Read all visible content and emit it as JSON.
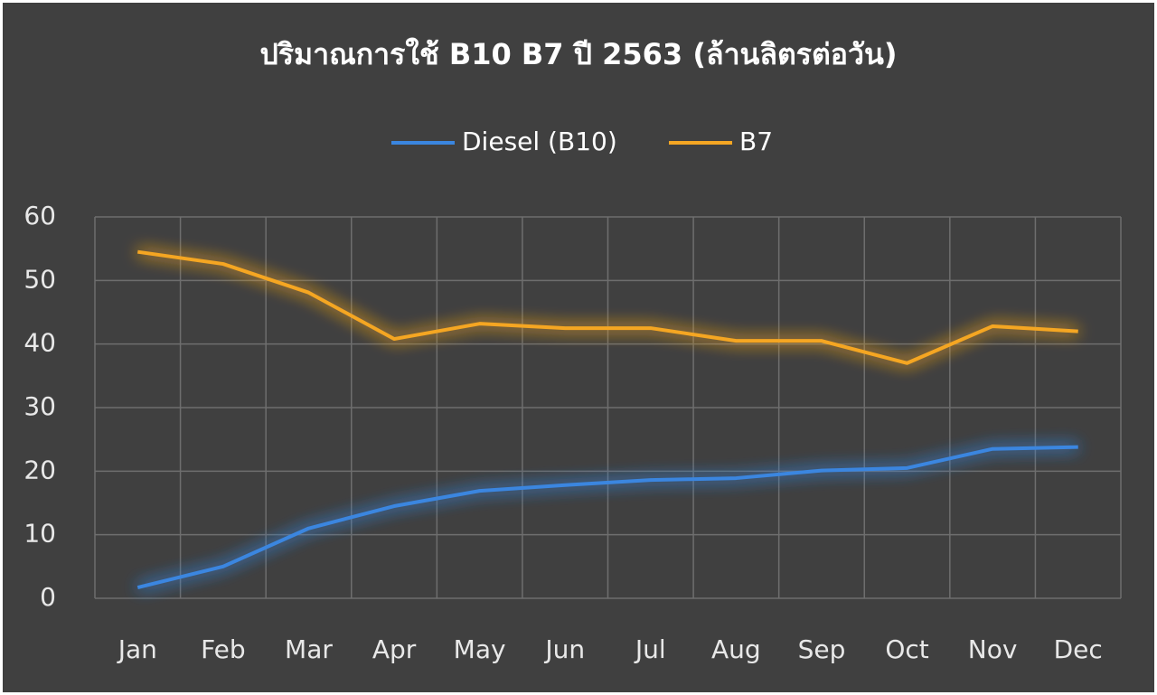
{
  "chart_data": {
    "type": "line",
    "title": "ปริมาณการใช้ B10 B7  ปี 2563 (ล้านลิตรต่อวัน)",
    "categories": [
      "Jan",
      "Feb",
      "Mar",
      "Apr",
      "May",
      "Jun",
      "Jul",
      "Aug",
      "Sep",
      "Oct",
      "Nov",
      "Dec"
    ],
    "series": [
      {
        "name": "Diesel (B10)",
        "color": "#3a86e0",
        "values": [
          1.7,
          5.0,
          11.0,
          14.5,
          16.9,
          17.8,
          18.6,
          18.9,
          20.1,
          20.5,
          23.5,
          23.8
        ]
      },
      {
        "name": "B7",
        "color": "#f5a623",
        "values": [
          54.5,
          52.6,
          48.1,
          40.8,
          43.2,
          42.5,
          42.5,
          40.5,
          40.5,
          37.0,
          42.8,
          42.0
        ]
      }
    ],
    "ylim": [
      0,
      60
    ],
    "yticks": [
      0,
      10,
      20,
      30,
      40,
      50,
      60
    ],
    "grid": true,
    "legend": "top"
  }
}
